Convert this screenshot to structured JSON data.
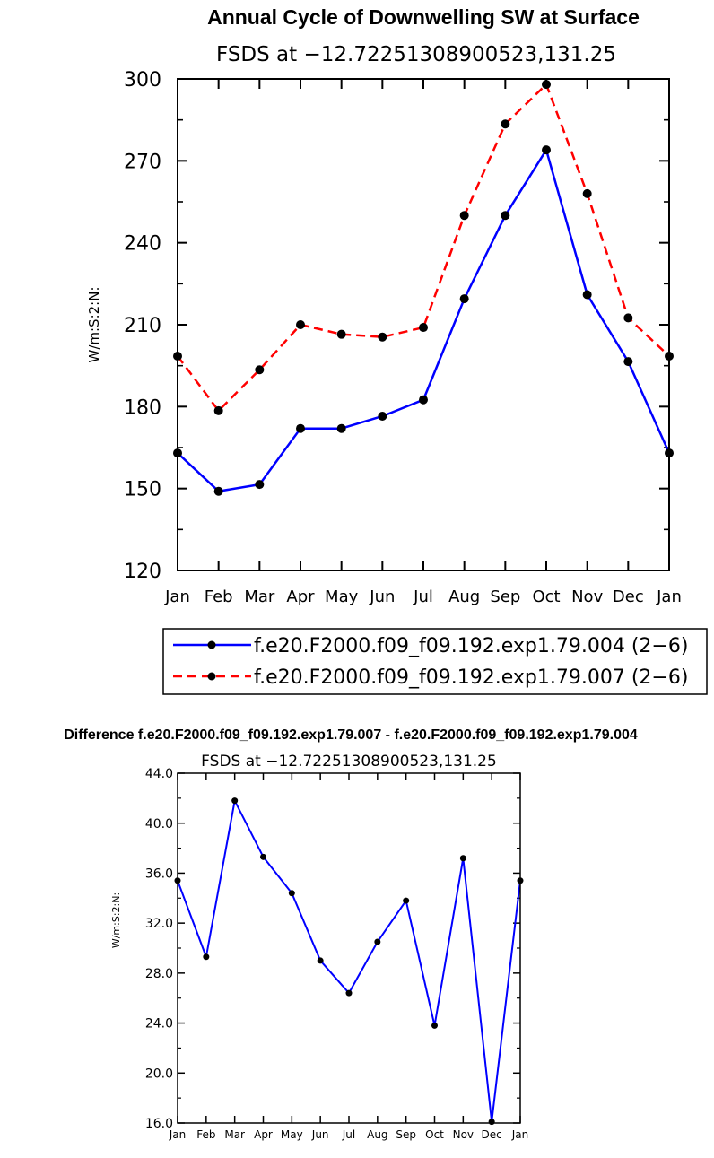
{
  "chart_data": [
    {
      "type": "line",
      "title": "Annual Cycle of Downwelling SW at Surface",
      "subtitle": "FSDS at −12.72251308900523,131.25",
      "ylabel": "W/m:S:2:N:",
      "xlabel": "",
      "categories": [
        "Jan",
        "Feb",
        "Mar",
        "Apr",
        "May",
        "Jun",
        "Jul",
        "Aug",
        "Sep",
        "Oct",
        "Nov",
        "Dec",
        "Jan"
      ],
      "ylim": [
        120,
        300
      ],
      "yticks": [
        "120",
        "150",
        "180",
        "210",
        "240",
        "270",
        "300"
      ],
      "grid": false,
      "legend_position": "bottom",
      "series": [
        {
          "name": "f.e20.F2000.f09_f09.192.exp1.79.004 (2−6)",
          "color": "#0000ff",
          "dash": "solid",
          "values": [
            163,
            149,
            151.5,
            172,
            172,
            176.5,
            182.5,
            219.5,
            250,
            274,
            221,
            196.5,
            163
          ]
        },
        {
          "name": "f.e20.F2000.f09_f09.192.exp1.79.007 (2−6)",
          "color": "#ff0000",
          "dash": "dashed",
          "values": [
            198.5,
            178.5,
            193.5,
            210,
            206.5,
            205.5,
            209,
            250,
            283.5,
            298,
            258,
            212.5,
            198.5
          ]
        }
      ]
    },
    {
      "type": "line",
      "title": "Difference f.e20.F2000.f09_f09.192.exp1.79.007 - f.e20.F2000.f09_f09.192.exp1.79.004",
      "subtitle": "FSDS at −12.72251308900523,131.25",
      "ylabel": "W/m:S:2:N:",
      "xlabel": "",
      "categories": [
        "Jan",
        "Feb",
        "Mar",
        "Apr",
        "May",
        "Jun",
        "Jul",
        "Aug",
        "Sep",
        "Oct",
        "Nov",
        "Dec",
        "Jan"
      ],
      "ylim": [
        16,
        44
      ],
      "yticks": [
        "16.0",
        "20.0",
        "24.0",
        "28.0",
        "32.0",
        "36.0",
        "40.0",
        "44.0"
      ],
      "grid": false,
      "series": [
        {
          "color": "#0000ff",
          "dash": "solid",
          "values": [
            35.4,
            29.3,
            41.8,
            37.3,
            34.4,
            29.0,
            26.4,
            30.5,
            33.8,
            23.8,
            37.2,
            16.1,
            35.4
          ]
        }
      ]
    }
  ]
}
